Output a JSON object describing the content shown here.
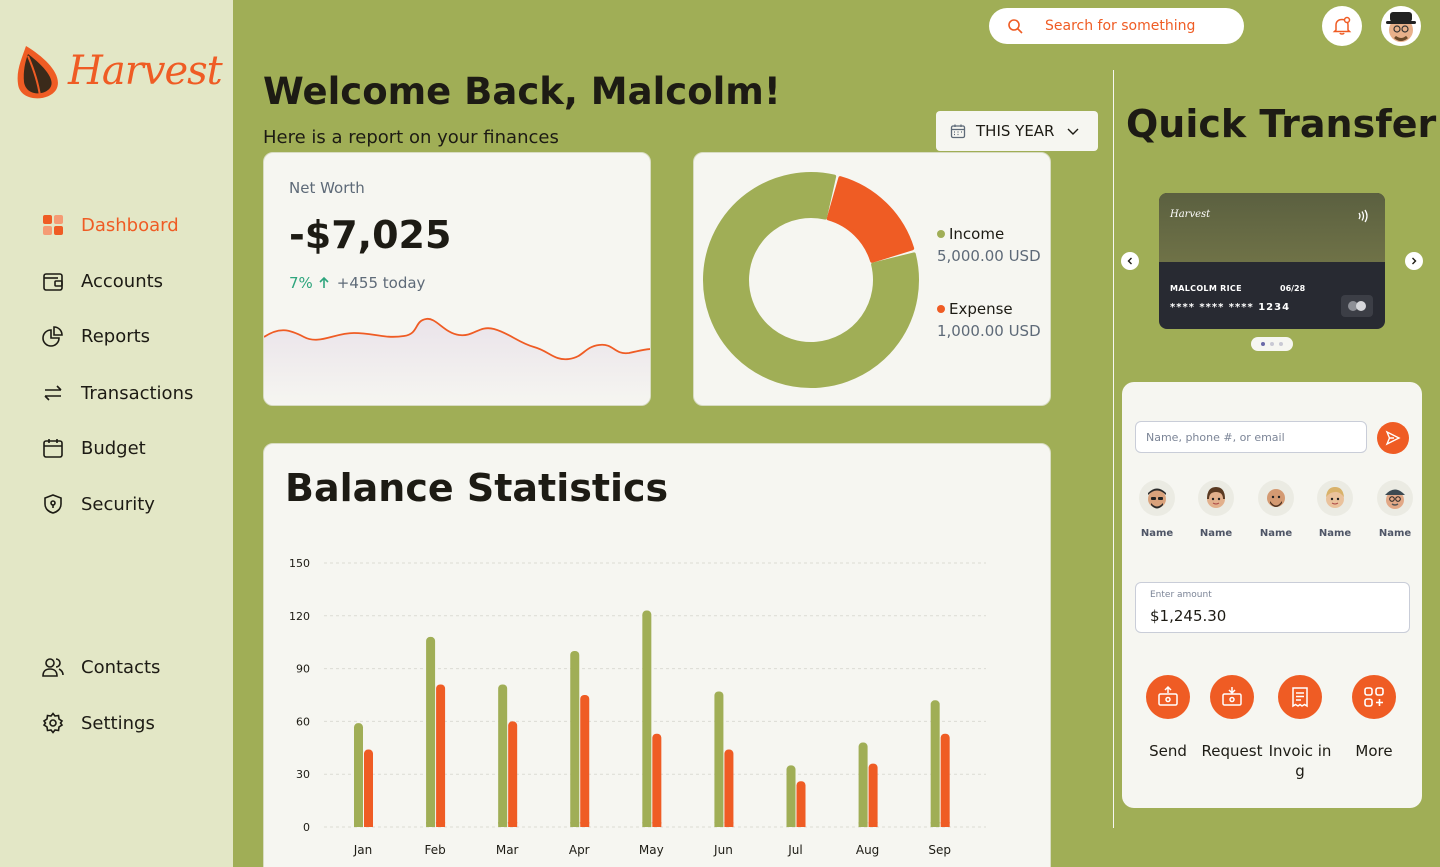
{
  "brand": {
    "name": "Harvest",
    "accent": "#ef5c24",
    "green": "#a0ae56"
  },
  "sidebar": {
    "items": [
      {
        "label": "Dashboard",
        "icon": "dashboard-icon",
        "active": true
      },
      {
        "label": "Accounts",
        "icon": "accounts-icon"
      },
      {
        "label": "Reports",
        "icon": "reports-icon"
      },
      {
        "label": "Transactions",
        "icon": "transactions-icon"
      },
      {
        "label": "Budget",
        "icon": "budget-icon"
      },
      {
        "label": "Security",
        "icon": "security-icon"
      },
      {
        "label": "Contacts",
        "icon": "contacts-icon"
      },
      {
        "label": "Settings",
        "icon": "settings-icon"
      }
    ]
  },
  "topbar": {
    "search_placeholder": "Search for something"
  },
  "header": {
    "welcome": "Welcome Back, Malcolm!",
    "subtitle": "Here is a report on your finances",
    "period": "THIS YEAR"
  },
  "net_worth": {
    "label": "Net Worth",
    "value": "-$7,025",
    "change_pct": "7%",
    "change_today": "+455 today"
  },
  "income_expense": {
    "income_label": "Income",
    "income_value": "5,000.00 USD",
    "expense_label": "Expense",
    "expense_value": "1,000.00 USD"
  },
  "balance": {
    "title": "Balance Statistics"
  },
  "chart_data": [
    {
      "type": "bar",
      "title": "Balance Statistics",
      "categories": [
        "Jan",
        "Feb",
        "Mar",
        "Apr",
        "May",
        "Jun",
        "Jul",
        "Aug",
        "Sep"
      ],
      "series": [
        {
          "color": "#a0ae56",
          "values": [
            59,
            108,
            81,
            100,
            123,
            77,
            35,
            48,
            72
          ]
        },
        {
          "color": "#ef5c24",
          "values": [
            44,
            81,
            60,
            75,
            53,
            44,
            26,
            36,
            53
          ]
        }
      ],
      "yticks": [
        0,
        30,
        60,
        90,
        120,
        150
      ],
      "ylim": [
        0,
        150
      ],
      "grid": true
    },
    {
      "type": "pie",
      "slices": [
        {
          "label": "Income",
          "value": 5000,
          "color": "#a0ae56"
        },
        {
          "label": "Expense",
          "value": 1000,
          "color": "#ef5c24"
        }
      ]
    }
  ],
  "quick_transfer": {
    "title": "Quick Transfer",
    "card": {
      "brand": "Harvest",
      "holder": "MALCOLM RICE",
      "expiry": "06/28",
      "number": "**** **** **** 1234"
    },
    "recipient_placeholder": "Name, phone #, or email",
    "contacts": [
      "Name",
      "Name",
      "Name",
      "Name",
      "Name"
    ],
    "amount_label": "Enter amount",
    "amount_value": "$1,245.30",
    "actions": [
      "Send",
      "Request",
      "Invoic ing",
      "More"
    ]
  }
}
